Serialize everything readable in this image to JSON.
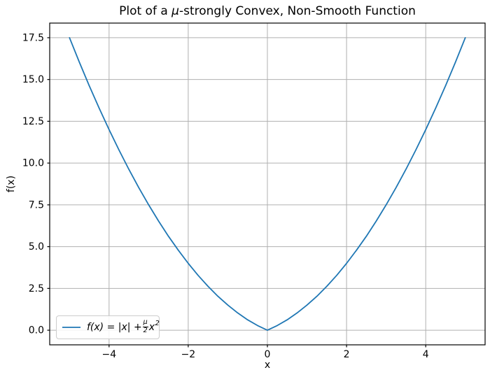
{
  "figure": {
    "title": {
      "prefix": "Plot of a ",
      "mu": "μ",
      "suffix": "-strongly Convex, Non-Smooth Function"
    },
    "xlabel": "x",
    "ylabel": "f(x)"
  },
  "legend": {
    "before_frac": "f(x) = |x| + ",
    "frac_numerator": "μ",
    "frac_denominator": "2",
    "base": "x",
    "exponent": "2"
  },
  "colors": {
    "line": "#1f77b4",
    "grid": "#b0b0b0",
    "spine": "#000000",
    "background": "#ffffff",
    "legend_border": "#cccccc"
  },
  "chart_data": {
    "type": "line",
    "title": "Plot of a μ-strongly Convex, Non-Smooth Function",
    "xlabel": "x",
    "ylabel": "f(x)",
    "xlim": [
      -5.5,
      5.5
    ],
    "ylim": [
      -0.875,
      18.375
    ],
    "x_ticks": [
      -4,
      -2,
      0,
      2,
      4
    ],
    "x_tick_labels": [
      "−4",
      "−2",
      "0",
      "2",
      "4"
    ],
    "y_ticks": [
      0,
      2.5,
      5,
      7.5,
      10,
      12.5,
      15,
      17.5
    ],
    "y_tick_labels": [
      "0.0",
      "2.5",
      "5.0",
      "7.5",
      "10.0",
      "12.5",
      "15.0",
      "17.5"
    ],
    "grid": true,
    "legend_position": "lower left",
    "series": [
      {
        "name": "f(x) = |x| + (μ/2)x²",
        "color": "#1f77b4",
        "mu": 1,
        "x": [
          -5,
          -4.75,
          -4.5,
          -4.25,
          -4,
          -3.75,
          -3.5,
          -3.25,
          -3,
          -2.75,
          -2.5,
          -2.25,
          -2,
          -1.75,
          -1.5,
          -1.25,
          -1,
          -0.75,
          -0.5,
          -0.25,
          0,
          0.25,
          0.5,
          0.75,
          1,
          1.25,
          1.5,
          1.75,
          2,
          2.25,
          2.5,
          2.75,
          3,
          3.25,
          3.5,
          3.75,
          4,
          4.25,
          4.5,
          4.75,
          5
        ],
        "y": [
          17.5,
          16.03125,
          14.625,
          13.28125,
          12,
          10.78125,
          9.625,
          8.53125,
          7.5,
          6.53125,
          5.625,
          4.78125,
          4,
          3.28125,
          2.625,
          2.03125,
          1.5,
          1.03125,
          0.625,
          0.28125,
          0,
          0.28125,
          0.625,
          1.03125,
          1.5,
          2.03125,
          2.625,
          3.28125,
          4,
          4.78125,
          5.625,
          6.53125,
          7.5,
          8.53125,
          9.625,
          10.78125,
          12,
          13.28125,
          14.625,
          16.03125,
          17.5
        ]
      }
    ]
  }
}
